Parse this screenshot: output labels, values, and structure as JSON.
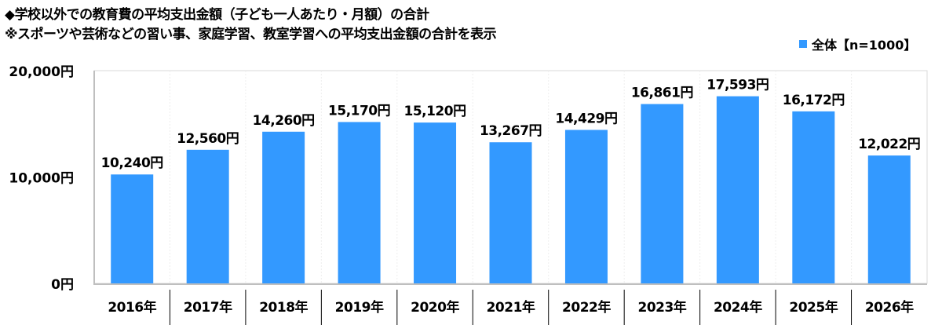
{
  "chart_data": {
    "type": "bar",
    "title": "◆学校以外での教育費の平均支出金額（子ども一人あたり・月額）の合計",
    "subtitle": "※スポーツや芸術などの習い事、家庭学習、教室学習への平均支出金額の合計を表示",
    "categories": [
      "2016年",
      "2017年",
      "2018年",
      "2019年",
      "2020年",
      "2021年",
      "2022年",
      "2023年",
      "2024年",
      "2025年",
      "2026年"
    ],
    "series": [
      {
        "name": "全体【n=1000】",
        "values": [
          10240,
          12560,
          14260,
          15170,
          15120,
          13267,
          14429,
          16861,
          17593,
          16172,
          12022
        ],
        "color": "#3399ff"
      }
    ],
    "data_labels": [
      "10,240円",
      "12,560円",
      "14,260円",
      "15,170円",
      "15,120円",
      "13,267円",
      "14,429円",
      "16,861円",
      "17,593円",
      "16,172円",
      "12,022円"
    ],
    "yticks": [
      0,
      10000,
      20000
    ],
    "ytick_labels": [
      "0円",
      "10,000円",
      "20,000円"
    ],
    "ylim": [
      0,
      20000
    ],
    "xlabel": "",
    "ylabel": "",
    "legend_position": "top-right",
    "grid": false
  }
}
